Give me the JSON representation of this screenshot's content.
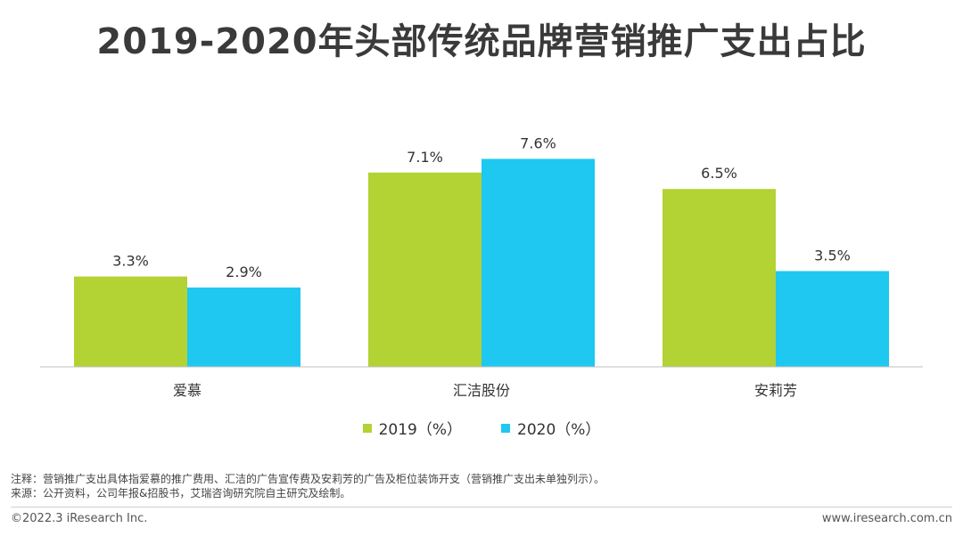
{
  "title": "2019-2020年头部传统品牌营销推广支出占比",
  "chart_data": {
    "type": "bar",
    "categories": [
      "爱慕",
      "汇洁股份",
      "安莉芳"
    ],
    "series": [
      {
        "name": "2019（%）",
        "values": [
          3.3,
          7.1,
          6.5
        ],
        "labels": [
          "3.3%",
          "7.1%",
          "6.5%"
        ],
        "color": "#b3d233"
      },
      {
        "name": "2020（%）",
        "values": [
          2.9,
          7.6,
          3.5
        ],
        "labels": [
          "2.9%",
          "7.6%",
          "3.5%"
        ],
        "color": "#1ec8f0"
      }
    ],
    "ylim": [
      0,
      8.2
    ],
    "legend_position": "bottom",
    "grid": false
  },
  "notes": {
    "note": "注释：营销推广支出具体指爱慕的推广费用、汇洁的广告宣传费及安莉芳的广告及柜位装饰开支（营销推广支出未单独列示）。",
    "source": "来源：公开资料，公司年报&招股书，艾瑞咨询研究院自主研究及绘制。"
  },
  "footer": {
    "copyright": "©2022.3 iResearch Inc.",
    "website": "www.iresearch.com.cn"
  }
}
